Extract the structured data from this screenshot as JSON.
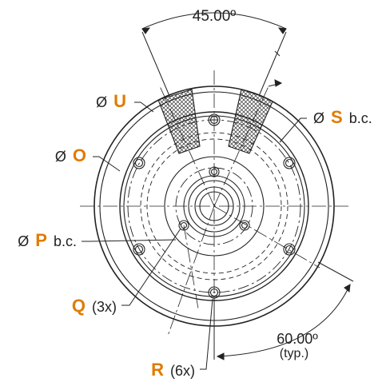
{
  "dimensions": {
    "angle_top": "45.00º",
    "angle_bottom": "60.00º",
    "angle_bottom_note": "(typ.)"
  },
  "callouts": {
    "u": {
      "prefix": "Ø",
      "key": "U",
      "suffix": ""
    },
    "s": {
      "prefix": "Ø",
      "key": "S",
      "suffix": "b.c."
    },
    "o": {
      "prefix": "Ø",
      "key": "O",
      "suffix": ""
    },
    "p": {
      "prefix": "Ø",
      "key": "P",
      "suffix": "b.c."
    },
    "q": {
      "prefix": "",
      "key": "Q",
      "suffix": "(3x)"
    },
    "r": {
      "prefix": "",
      "key": "R",
      "suffix": "(6x)"
    }
  },
  "colors": {
    "key_letter": "#e07b00",
    "line": "#222222",
    "background": "#ffffff"
  }
}
